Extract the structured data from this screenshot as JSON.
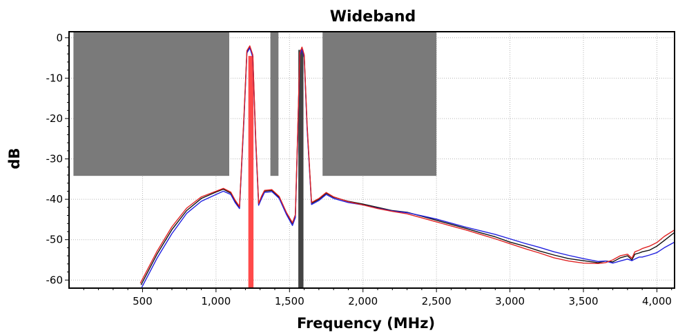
{
  "chart_data": {
    "type": "line",
    "title": "Wideband",
    "xlabel": "Frequency (MHz)",
    "ylabel": "dB",
    "xlim": [
      0,
      4120
    ],
    "ylim": [
      -62,
      1.5
    ],
    "grid": true,
    "x_ticks": [
      {
        "value": 500,
        "label": "500"
      },
      {
        "value": 1000,
        "label": "1,000"
      },
      {
        "value": 1500,
        "label": "1,500"
      },
      {
        "value": 2000,
        "label": "2,000"
      },
      {
        "value": 2500,
        "label": "2,500"
      },
      {
        "value": 3000,
        "label": "3,000"
      },
      {
        "value": 3500,
        "label": "3,500"
      },
      {
        "value": 4000,
        "label": "4,000"
      }
    ],
    "y_ticks": [
      {
        "value": 0,
        "label": "0"
      },
      {
        "value": -10,
        "label": "-10"
      },
      {
        "value": -20,
        "label": "-20"
      },
      {
        "value": -30,
        "label": "-30"
      },
      {
        "value": -40,
        "label": "-40"
      },
      {
        "value": -50,
        "label": "-50"
      },
      {
        "value": -60,
        "label": "-60"
      }
    ],
    "mask_regions": [
      {
        "x0": 30,
        "x1": 1090,
        "y_top": 1.5,
        "y_bottom": -34.2
      },
      {
        "x0": 1370,
        "x1": 1425,
        "y_top": 1.5,
        "y_bottom": -34.2
      },
      {
        "x0": 1725,
        "x1": 2500,
        "y_top": 1.5,
        "y_bottom": -34.2
      }
    ],
    "markers": [
      {
        "x0": 1220,
        "x1": 1255,
        "y_top": -4.5,
        "y_bottom": -62,
        "color": "#ff4a4a"
      },
      {
        "x0": 1560,
        "x1": 1595,
        "y_top": -3,
        "y_bottom": -62,
        "color": "#444444"
      }
    ],
    "series": [
      {
        "color": "#111111",
        "x": [
          490,
          600,
          700,
          800,
          900,
          1000,
          1050,
          1100,
          1130,
          1160,
          1190,
          1210,
          1230,
          1250,
          1270,
          1290,
          1310,
          1330,
          1380,
          1430,
          1480,
          1520,
          1540,
          1555,
          1570,
          1585,
          1600,
          1620,
          1650,
          1700,
          1750,
          1800,
          1900,
          2000,
          2100,
          2200,
          2300,
          2400,
          2500,
          2600,
          2700,
          2800,
          2900,
          3000,
          3100,
          3200,
          3300,
          3400,
          3500,
          3600,
          3650,
          3700,
          3750,
          3800,
          3830,
          3850,
          3880,
          3900,
          3950,
          4000,
          4050,
          4120
        ],
        "y": [
          -61.2,
          -53.5,
          -47.5,
          -42.8,
          -39.8,
          -38.2,
          -37.5,
          -38.5,
          -40.5,
          -42,
          -20,
          -3.5,
          -2.2,
          -4.5,
          -25,
          -41.2,
          -39.5,
          -38,
          -37.8,
          -39.5,
          -43.5,
          -46,
          -44,
          -25,
          -4,
          -2.5,
          -4.5,
          -22,
          -41,
          -40,
          -38.5,
          -39.5,
          -40.5,
          -41.2,
          -42,
          -42.8,
          -43.2,
          -44.2,
          -45.2,
          -46.2,
          -47.2,
          -48.3,
          -49.3,
          -50.6,
          -51.6,
          -52.8,
          -53.8,
          -54.7,
          -55.2,
          -55.7,
          -55.3,
          -55.5,
          -54.5,
          -54,
          -55,
          -53.6,
          -53.3,
          -53,
          -52.6,
          -51.6,
          -50.2,
          -48.2
        ]
      },
      {
        "color": "#1f1fdf",
        "x": [
          495,
          600,
          700,
          800,
          900,
          1000,
          1050,
          1100,
          1130,
          1160,
          1190,
          1210,
          1230,
          1250,
          1270,
          1290,
          1310,
          1330,
          1380,
          1430,
          1480,
          1520,
          1540,
          1555,
          1570,
          1585,
          1600,
          1620,
          1650,
          1700,
          1750,
          1800,
          1900,
          2000,
          2100,
          2200,
          2300,
          2400,
          2500,
          2600,
          2700,
          2800,
          2900,
          3000,
          3100,
          3200,
          3300,
          3400,
          3500,
          3600,
          3650,
          3700,
          3750,
          3800,
          3830,
          3850,
          3880,
          3900,
          3950,
          4000,
          4050,
          4120
        ],
        "y": [
          -61.8,
          -54.5,
          -48.5,
          -43.5,
          -40.5,
          -38.8,
          -38,
          -38.8,
          -40.8,
          -42.3,
          -20.5,
          -3.8,
          -2.5,
          -4.8,
          -25.5,
          -41.5,
          -39.8,
          -38.3,
          -38.1,
          -39.8,
          -43.8,
          -46.5,
          -44.5,
          -25.5,
          -4.3,
          -2.8,
          -4.8,
          -22.5,
          -41.3,
          -40.3,
          -38.8,
          -39.8,
          -40.8,
          -41.4,
          -42.2,
          -42.9,
          -43.3,
          -44.1,
          -44.9,
          -45.9,
          -46.9,
          -47.8,
          -48.7,
          -49.8,
          -50.9,
          -51.9,
          -53,
          -53.9,
          -54.7,
          -55.4,
          -55.3,
          -55.8,
          -55.3,
          -54.8,
          -55.2,
          -54.8,
          -54.3,
          -54.3,
          -53.8,
          -53.2,
          -52,
          -50.6
        ]
      },
      {
        "color": "#e02222",
        "x": [
          485,
          600,
          700,
          800,
          900,
          1000,
          1050,
          1100,
          1130,
          1160,
          1190,
          1210,
          1230,
          1250,
          1270,
          1290,
          1310,
          1330,
          1380,
          1430,
          1480,
          1520,
          1540,
          1555,
          1570,
          1585,
          1600,
          1620,
          1650,
          1700,
          1750,
          1800,
          1900,
          2000,
          2100,
          2200,
          2300,
          2400,
          2500,
          2600,
          2700,
          2800,
          2900,
          3000,
          3100,
          3200,
          3300,
          3400,
          3500,
          3600,
          3650,
          3700,
          3750,
          3800,
          3830,
          3850,
          3880,
          3900,
          3950,
          4000,
          4050,
          4120
        ],
        "y": [
          -60.8,
          -52.8,
          -46.8,
          -42.2,
          -39.4,
          -38,
          -37.3,
          -38.2,
          -40.2,
          -41.8,
          -19.5,
          -3.2,
          -2,
          -4.2,
          -24.5,
          -41,
          -39.2,
          -37.8,
          -37.6,
          -39.3,
          -43.3,
          -45.8,
          -43.8,
          -24.5,
          -3.8,
          -2.3,
          -4.2,
          -21.5,
          -40.8,
          -39.8,
          -38.3,
          -39.4,
          -40.6,
          -41.4,
          -42.3,
          -43,
          -43.6,
          -44.6,
          -45.6,
          -46.6,
          -47.6,
          -48.7,
          -49.8,
          -51,
          -52.2,
          -53.3,
          -54.5,
          -55.3,
          -55.8,
          -55.9,
          -55.7,
          -55,
          -54,
          -53.6,
          -54.6,
          -53,
          -52.6,
          -52.2,
          -51.6,
          -50.7,
          -49.2,
          -47.6
        ]
      }
    ]
  }
}
